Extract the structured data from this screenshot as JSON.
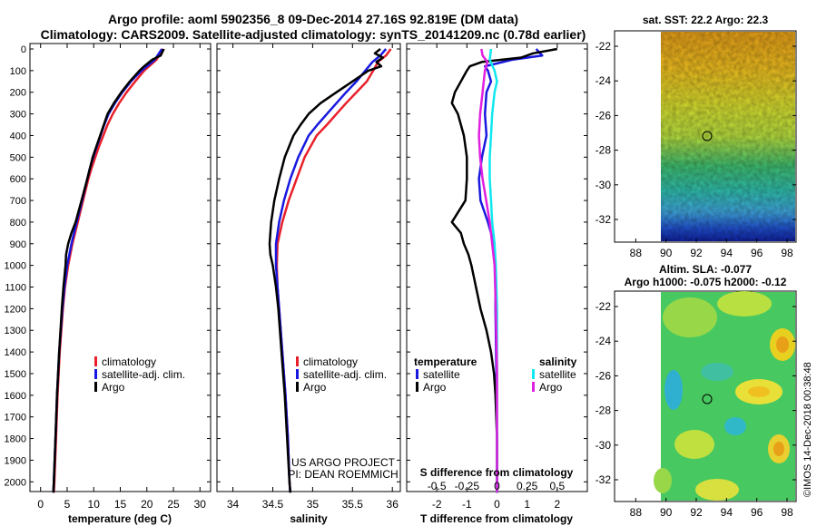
{
  "header": {
    "line1": "Argo profile: aoml 5902356_8 09-Dec-2014 27.16S 92.819E (DM data)",
    "line2": "Climatology: CARS2009. Satellite-adjusted climatology: synTS_20141209.nc (0.78d earlier)"
  },
  "colors": {
    "climatology": "#e8202a",
    "satellite": "#1818e0",
    "argo": "#000000",
    "sal_satellite": "#10e8f0",
    "sal_argo": "#e020e0"
  },
  "depth_axis": {
    "ticks": [
      "0",
      "100",
      "200",
      "300",
      "400",
      "500",
      "600",
      "700",
      "800",
      "900",
      "1000",
      "1100",
      "1200",
      "1300",
      "1400",
      "1500",
      "1600",
      "1700",
      "1800",
      "1900",
      "2000"
    ]
  },
  "chart_data": [
    {
      "type": "line",
      "panel": "temperature",
      "xlabel": "temperature (deg C)",
      "xlim": [
        -2,
        32
      ],
      "ylim": [
        2070,
        0
      ],
      "xticks": [
        "0",
        "5",
        "10",
        "15",
        "20",
        "25",
        "30"
      ],
      "legend": [
        "climatology",
        "satellite-adj. clim.",
        "Argo"
      ],
      "series": [
        {
          "name": "climatology",
          "depth": [
            0,
            50,
            100,
            150,
            200,
            250,
            300,
            350,
            400,
            450,
            500,
            550,
            600,
            700,
            800,
            900,
            1000,
            1100,
            1200,
            1400,
            1600,
            1800,
            2000,
            2050
          ],
          "values": [
            23,
            21.8,
            19.5,
            17.8,
            16.2,
            14.8,
            13.6,
            12.6,
            11.8,
            11.0,
            10.3,
            9.6,
            9.0,
            8.0,
            7.0,
            6.0,
            5.2,
            4.6,
            4.2,
            3.6,
            3.2,
            2.9,
            2.6,
            2.5
          ]
        },
        {
          "name": "satellite-adj. clim.",
          "depth": [
            0,
            50,
            100,
            150,
            200,
            250,
            300,
            350,
            400,
            450,
            500,
            550,
            600,
            700,
            800,
            900,
            1000,
            1100,
            1200,
            1400,
            1600,
            1800,
            2000,
            2050
          ],
          "values": [
            22.8,
            21.5,
            19.0,
            17.0,
            15.4,
            14.0,
            12.8,
            12.0,
            11.3,
            10.6,
            9.9,
            9.3,
            8.8,
            7.8,
            6.8,
            5.8,
            5.0,
            4.5,
            4.1,
            3.5,
            3.1,
            2.8,
            2.5,
            2.4
          ]
        },
        {
          "name": "Argo",
          "depth": [
            0,
            30,
            50,
            80,
            100,
            150,
            200,
            250,
            300,
            350,
            400,
            450,
            500,
            600,
            700,
            800,
            850,
            900,
            950,
            1000,
            1100,
            1200,
            1400,
            1600,
            1800,
            2000,
            2050
          ],
          "values": [
            23.2,
            22.6,
            21.0,
            19.5,
            18.6,
            16.8,
            15.2,
            13.8,
            12.6,
            11.9,
            11.2,
            10.5,
            9.8,
            8.8,
            7.7,
            6.6,
            5.8,
            5.2,
            4.8,
            4.7,
            4.3,
            4.0,
            3.5,
            3.1,
            2.8,
            2.5,
            2.4
          ]
        }
      ]
    },
    {
      "type": "line",
      "panel": "salinity",
      "xlabel": "salinity",
      "xlim": [
        33.8,
        36.1
      ],
      "ylim": [
        2070,
        0
      ],
      "xticks": [
        "34",
        "34.5",
        "35",
        "35.5",
        "36"
      ],
      "legend": [
        "climatology",
        "satellite-adj. clim.",
        "Argo"
      ],
      "series": [
        {
          "name": "climatology",
          "depth": [
            0,
            30,
            60,
            100,
            150,
            200,
            250,
            300,
            350,
            400,
            500,
            600,
            700,
            800,
            900,
            1000,
            1100,
            1200,
            1400,
            1600,
            1800,
            2000,
            2050
          ],
          "values": [
            35.98,
            35.92,
            35.82,
            35.76,
            35.68,
            35.55,
            35.42,
            35.3,
            35.18,
            35.05,
            34.9,
            34.8,
            34.7,
            34.62,
            34.56,
            34.55,
            34.56,
            34.58,
            34.62,
            34.66,
            34.69,
            34.71,
            34.72
          ]
        },
        {
          "name": "satellite-adj. clim.",
          "depth": [
            0,
            30,
            60,
            100,
            150,
            200,
            250,
            300,
            350,
            400,
            500,
            600,
            700,
            800,
            900,
            1000,
            1100,
            1200,
            1400,
            1600,
            1800,
            2000,
            2050
          ],
          "values": [
            35.92,
            35.85,
            35.75,
            35.66,
            35.55,
            35.42,
            35.3,
            35.18,
            35.06,
            34.95,
            34.82,
            34.72,
            34.64,
            34.58,
            34.54,
            34.54,
            34.56,
            34.58,
            34.62,
            34.66,
            34.69,
            34.71,
            34.72
          ]
        },
        {
          "name": "Argo",
          "depth": [
            0,
            20,
            40,
            60,
            80,
            100,
            150,
            200,
            250,
            300,
            350,
            400,
            500,
            600,
            700,
            800,
            850,
            900,
            950,
            1000,
            1100,
            1200,
            1400,
            1600,
            1800,
            2000,
            2050
          ],
          "values": [
            35.85,
            35.78,
            35.88,
            35.8,
            35.86,
            35.7,
            35.5,
            35.3,
            35.1,
            34.95,
            34.85,
            34.76,
            34.65,
            34.58,
            34.52,
            34.48,
            34.47,
            34.46,
            34.47,
            34.5,
            34.54,
            34.57,
            34.61,
            34.65,
            34.68,
            34.71,
            34.72
          ]
        }
      ]
    },
    {
      "type": "line",
      "panel": "difference",
      "xlabel": "T difference from climatology",
      "xlabel_top": "S difference from climatology",
      "xlim": [
        -3,
        3
      ],
      "ylim": [
        2070,
        0
      ],
      "xticks": [
        "-2",
        "-1",
        "0",
        "1",
        "2"
      ],
      "xticks_top": [
        "-0.5",
        "-0.25",
        "0",
        "0.25",
        "0.5"
      ],
      "legend_left_title": "temperature",
      "legend_right_title": "salinity",
      "legend_left": [
        "satellite",
        "Argo"
      ],
      "legend_right": [
        "satellite",
        "Argo"
      ],
      "series": [
        {
          "name": "T satellite",
          "depth": [
            0,
            30,
            50,
            80,
            100,
            150,
            200,
            300,
            400,
            500,
            600,
            700,
            800,
            900,
            1000,
            1200,
            1500,
            1800,
            2050
          ],
          "values": [
            1.3,
            1.5,
            0.5,
            -0.4,
            -0.3,
            -0.2,
            -0.35,
            -0.4,
            -0.35,
            -0.5,
            -0.6,
            -0.55,
            -0.3,
            -0.1,
            -0.05,
            -0.05,
            -0.02,
            0,
            0
          ]
        },
        {
          "name": "T Argo",
          "depth": [
            0,
            20,
            40,
            60,
            80,
            100,
            150,
            200,
            250,
            300,
            350,
            400,
            500,
            600,
            700,
            800,
            850,
            900,
            950,
            1000,
            1100,
            1200,
            1300,
            1400,
            1500,
            1600,
            1800,
            2050
          ],
          "values": [
            2.0,
            1.2,
            0.8,
            -0.5,
            -0.9,
            -1.0,
            -1.2,
            -1.4,
            -1.5,
            -1.3,
            -1.2,
            -1.1,
            -1.0,
            -1.0,
            -1.05,
            -1.5,
            -1.2,
            -1.1,
            -0.95,
            -0.85,
            -0.7,
            -0.55,
            -0.35,
            -0.2,
            -0.1,
            -0.05,
            0,
            0
          ]
        },
        {
          "name": "S satellite",
          "depth": [
            0,
            50,
            100,
            150,
            200,
            300,
            400,
            500,
            600,
            700,
            800,
            900,
            1000,
            1200,
            1500,
            1800,
            2050
          ],
          "values": [
            -0.05,
            -0.06,
            -0.02,
            0,
            -0.02,
            -0.04,
            -0.05,
            -0.06,
            -0.06,
            -0.05,
            -0.04,
            -0.02,
            -0.01,
            0,
            0,
            0,
            0
          ]
        },
        {
          "name": "S Argo",
          "depth": [
            0,
            30,
            60,
            100,
            150,
            200,
            300,
            400,
            500,
            600,
            700,
            800,
            900,
            1000,
            1200,
            1500,
            1800,
            2050
          ],
          "values": [
            -0.13,
            -0.12,
            -0.08,
            -0.1,
            -0.11,
            -0.12,
            -0.14,
            -0.15,
            -0.14,
            -0.12,
            -0.09,
            -0.06,
            -0.04,
            -0.02,
            -0.01,
            0,
            0,
            0
          ]
        }
      ]
    }
  ],
  "sst_map": {
    "title": "sat. SST: 22.2 Argo: 22.3",
    "yticks": [
      "-22",
      "-24",
      "-26",
      "-28",
      "-30",
      "-32"
    ],
    "xticks": [
      "88",
      "90",
      "92",
      "94",
      "96",
      "98"
    ]
  },
  "sla_map": {
    "title1": "Altim. SLA: -0.077",
    "title2": "Argo h1000: -0.075 h2000: -0.12",
    "yticks": [
      "-22",
      "-24",
      "-26",
      "-28",
      "-30",
      "-32"
    ],
    "xticks": [
      "88",
      "90",
      "92",
      "94",
      "96",
      "98"
    ]
  },
  "credits": {
    "line1": "US ARGO PROJECT",
    "line2": "PI: DEAN ROEMMICH",
    "side": "©IMOS 14-Dec-2018 00:38:48"
  }
}
